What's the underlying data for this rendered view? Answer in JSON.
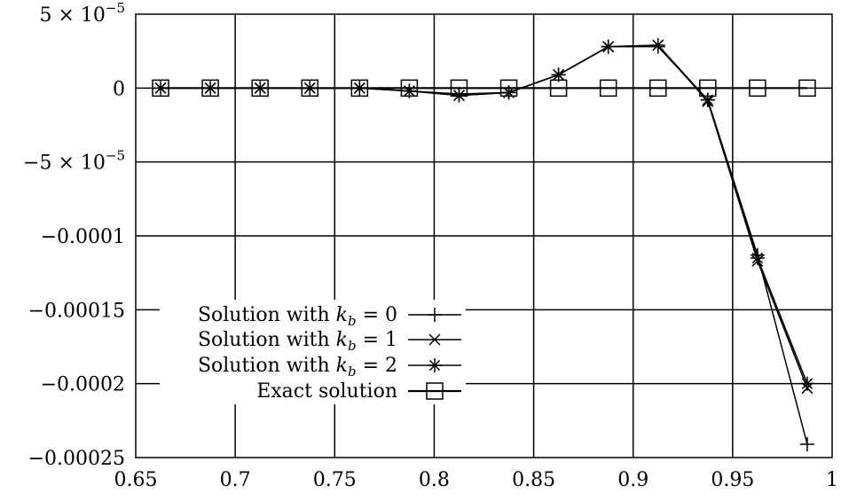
{
  "chart_data": {
    "type": "line",
    "title": "",
    "xlabel": "",
    "ylabel": "",
    "xlim": [
      0.65,
      1.0
    ],
    "ylim": [
      -0.00025,
      5e-05
    ],
    "grid": true,
    "legend_position": "bottom-left",
    "x_ticks": [
      0.65,
      0.7,
      0.75,
      0.8,
      0.85,
      0.9,
      0.95,
      1.0
    ],
    "x_tick_labels": [
      "0.65",
      "0.7",
      "0.75",
      "0.8",
      "0.85",
      "0.9",
      "0.95",
      "1"
    ],
    "y_ticks": [
      5e-05,
      0,
      -5e-05,
      -0.0001,
      -0.00015,
      -0.0002,
      -0.00025
    ],
    "y_tick_labels": [
      {
        "text": "5 × 10",
        "exp": "−5"
      },
      {
        "text": "0",
        "exp": ""
      },
      {
        "text": "−5 × 10",
        "exp": "−5"
      },
      {
        "text": "−0.0001",
        "exp": ""
      },
      {
        "text": "−0.00015",
        "exp": ""
      },
      {
        "text": "−0.0002",
        "exp": ""
      },
      {
        "text": "−0.00025",
        "exp": ""
      }
    ],
    "series": [
      {
        "legend_prefix": "Solution with ",
        "legend_var": "k",
        "legend_sub": "b",
        "legend_suffix": " = 0",
        "marker": "plus",
        "x": [
          0.7375,
          0.7625,
          0.7875,
          0.8125,
          0.8375,
          0.8625,
          0.8875,
          0.9125,
          0.9375,
          0.9625,
          0.9875
        ],
        "y": [
          0.0,
          0.0,
          -2e-06,
          -4e-06,
          -3e-06,
          9e-06,
          2.8e-05,
          2.8e-05,
          -8e-06,
          -0.000113,
          -0.000241
        ]
      },
      {
        "legend_prefix": "Solution with ",
        "legend_var": "k",
        "legend_sub": "b",
        "legend_suffix": " = 1",
        "marker": "cross",
        "x": [
          0.6625,
          0.6875,
          0.7125,
          0.7375,
          0.7625,
          0.7875,
          0.8125,
          0.8375,
          0.8625,
          0.8875,
          0.9125,
          0.9375,
          0.9625,
          0.9875
        ],
        "y": [
          0.0,
          0.0,
          0.0,
          0.0,
          0.0,
          -2e-06,
          -5e-06,
          -3e-06,
          9e-06,
          2.8e-05,
          2.9e-05,
          -9e-06,
          -0.000117,
          -0.000203
        ]
      },
      {
        "legend_prefix": "Solution with ",
        "legend_var": "k",
        "legend_sub": "b",
        "legend_suffix": " = 2",
        "marker": "star",
        "x": [
          0.6625,
          0.6875,
          0.7125,
          0.7375,
          0.7625,
          0.7875,
          0.8125,
          0.8375,
          0.8625,
          0.8875,
          0.9125,
          0.9375,
          0.9625,
          0.9875
        ],
        "y": [
          0.0,
          0.0,
          0.0,
          0.0,
          0.0,
          -2e-06,
          -5e-06,
          -3e-06,
          9e-06,
          2.8e-05,
          2.9e-05,
          -8e-06,
          -0.000115,
          -0.0002
        ]
      },
      {
        "legend_prefix": "Exact solution",
        "legend_var": "",
        "legend_sub": "",
        "legend_suffix": "",
        "marker": "square",
        "x": [
          0.6625,
          0.6875,
          0.7125,
          0.7375,
          0.7625,
          0.7875,
          0.8125,
          0.8375,
          0.8625,
          0.8875,
          0.9125,
          0.9375,
          0.9625,
          0.9875
        ],
        "y": [
          0,
          0,
          0,
          0,
          0,
          0,
          0,
          0,
          0,
          0,
          0,
          0,
          0,
          0
        ]
      }
    ]
  }
}
